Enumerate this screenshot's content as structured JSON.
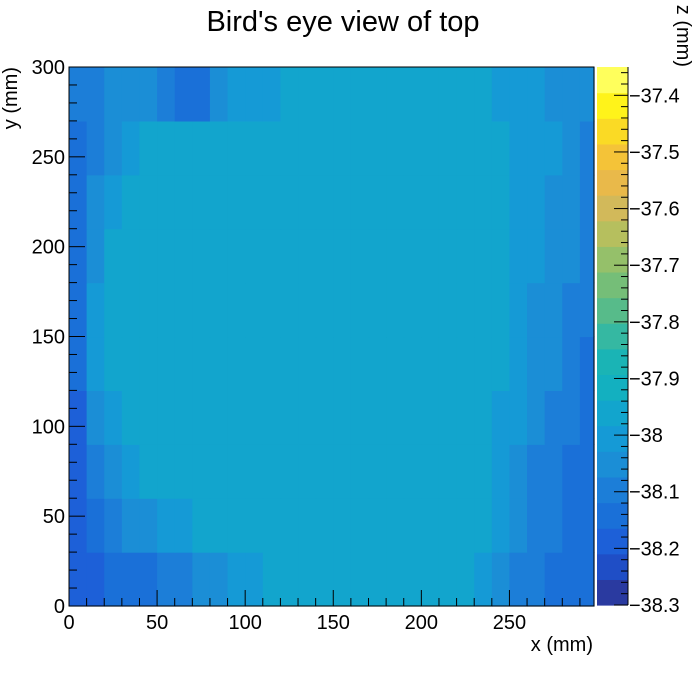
{
  "chart_data": {
    "type": "heatmap",
    "title": "Bird's eye view of top",
    "xlabel": "x (mm)",
    "ylabel": "y (mm)",
    "zlabel": "z (mm)",
    "xlim": [
      0,
      298
    ],
    "ylim": [
      0,
      300
    ],
    "zlim": [
      -38.3,
      -37.35
    ],
    "x_ticks": [
      0,
      50,
      100,
      150,
      200,
      250
    ],
    "y_ticks": [
      0,
      50,
      100,
      150,
      200,
      250,
      300
    ],
    "z_ticks": [
      -38.3,
      -38.2,
      -38.1,
      -38,
      -37.9,
      -37.8,
      -37.7,
      -37.6,
      -37.5,
      -37.4
    ],
    "x_tick_labels": [
      "0",
      "50",
      "100",
      "150",
      "200",
      "250"
    ],
    "y_tick_labels": [
      "0",
      "50",
      "100",
      "150",
      "200",
      "250",
      "300"
    ],
    "z_tick_labels": [
      "−38.3",
      "−38.2",
      "−38.1",
      "−38",
      "−37.9",
      "−37.8",
      "−37.7",
      "−37.6",
      "−37.5",
      "−37.4"
    ],
    "palette": [
      "#2a3aa0",
      "#1f4ec6",
      "#1d60d8",
      "#1a70d8",
      "#1c7ed8",
      "#1b8ed6",
      "#159ad6",
      "#12a5cd",
      "#13b0c0",
      "#1ab4b5",
      "#35b8a2",
      "#57bb8a",
      "#75be78",
      "#95c06a",
      "#b6bf5e",
      "#d2b95a",
      "#e9b94a",
      "#f4c338",
      "#fada25",
      "#fff31a",
      "#ffff5c"
    ],
    "z_grid": {
      "x_step": 10,
      "y_step": 30,
      "x": [
        5,
        15,
        25,
        35,
        45,
        55,
        65,
        75,
        85,
        95,
        105,
        115,
        125,
        135,
        145,
        155,
        165,
        175,
        185,
        195,
        205,
        215,
        225,
        235,
        245,
        255,
        265,
        275,
        285,
        295
      ],
      "y": [
        15,
        45,
        75,
        105,
        135,
        165,
        195,
        225,
        255,
        285
      ],
      "values": [
        [
          -38.2,
          -38.18,
          -38.16,
          -38.14,
          -38.12,
          -38.1,
          -38.08,
          -38.06,
          -38.04,
          -38.02,
          -38.0,
          -37.98,
          -37.95,
          -37.95,
          -37.95,
          -37.95,
          -37.95,
          -37.95,
          -37.95,
          -37.95,
          -37.95,
          -37.95,
          -37.96,
          -38.0,
          -38.05,
          -38.08,
          -38.1,
          -38.12,
          -38.14,
          -38.16
        ],
        [
          -38.18,
          -38.12,
          -38.08,
          -38.06,
          -38.04,
          -38.02,
          -38.0,
          -37.98,
          -37.96,
          -37.95,
          -37.95,
          -37.95,
          -37.95,
          -37.95,
          -37.95,
          -37.95,
          -37.95,
          -37.95,
          -37.95,
          -37.95,
          -37.95,
          -37.95,
          -37.95,
          -37.97,
          -38.02,
          -38.06,
          -38.09,
          -38.11,
          -38.13,
          -38.15
        ],
        [
          -38.18,
          -38.1,
          -38.04,
          -38.0,
          -37.98,
          -37.97,
          -37.96,
          -37.95,
          -37.95,
          -37.95,
          -37.95,
          -37.95,
          -37.95,
          -37.95,
          -37.95,
          -37.95,
          -37.95,
          -37.95,
          -37.95,
          -37.95,
          -37.95,
          -37.95,
          -37.95,
          -37.96,
          -38.0,
          -38.04,
          -38.08,
          -38.1,
          -38.12,
          -38.14
        ],
        [
          -38.17,
          -38.06,
          -37.99,
          -37.97,
          -37.96,
          -37.95,
          -37.95,
          -37.95,
          -37.95,
          -37.95,
          -37.95,
          -37.95,
          -37.95,
          -37.95,
          -37.95,
          -37.95,
          -37.95,
          -37.95,
          -37.95,
          -37.95,
          -37.95,
          -37.95,
          -37.95,
          -37.95,
          -37.99,
          -38.02,
          -38.05,
          -38.08,
          -38.1,
          -38.13
        ],
        [
          -38.16,
          -38.02,
          -37.96,
          -37.95,
          -37.95,
          -37.95,
          -37.95,
          -37.95,
          -37.95,
          -37.95,
          -37.95,
          -37.95,
          -37.95,
          -37.95,
          -37.95,
          -37.95,
          -37.95,
          -37.95,
          -37.95,
          -37.95,
          -37.95,
          -37.95,
          -37.95,
          -37.95,
          -37.98,
          -38.01,
          -38.04,
          -38.06,
          -38.09,
          -38.12
        ],
        [
          -38.15,
          -38.02,
          -37.96,
          -37.95,
          -37.95,
          -37.95,
          -37.95,
          -37.95,
          -37.95,
          -37.95,
          -37.95,
          -37.95,
          -37.95,
          -37.95,
          -37.95,
          -37.95,
          -37.95,
          -37.95,
          -37.95,
          -37.95,
          -37.95,
          -37.95,
          -37.95,
          -37.95,
          -37.98,
          -38.0,
          -38.03,
          -38.05,
          -38.08,
          -38.11
        ],
        [
          -38.15,
          -38.04,
          -37.97,
          -37.95,
          -37.95,
          -37.95,
          -37.95,
          -37.95,
          -37.95,
          -37.95,
          -37.95,
          -37.95,
          -37.95,
          -37.95,
          -37.95,
          -37.95,
          -37.95,
          -37.95,
          -37.95,
          -37.95,
          -37.95,
          -37.95,
          -37.95,
          -37.96,
          -37.98,
          -38.0,
          -38.02,
          -38.04,
          -38.06,
          -38.1
        ],
        [
          -38.14,
          -38.06,
          -38.0,
          -37.97,
          -37.96,
          -37.95,
          -37.95,
          -37.95,
          -37.95,
          -37.95,
          -37.95,
          -37.95,
          -37.95,
          -37.95,
          -37.95,
          -37.95,
          -37.95,
          -37.95,
          -37.95,
          -37.95,
          -37.95,
          -37.95,
          -37.96,
          -37.97,
          -37.98,
          -37.99,
          -38.01,
          -38.03,
          -38.05,
          -38.09
        ],
        [
          -38.12,
          -38.08,
          -38.04,
          -38.0,
          -37.98,
          -37.97,
          -37.96,
          -37.95,
          -37.95,
          -37.95,
          -37.95,
          -37.95,
          -37.95,
          -37.95,
          -37.95,
          -37.95,
          -37.95,
          -37.95,
          -37.95,
          -37.95,
          -37.96,
          -37.96,
          -37.97,
          -37.97,
          -37.98,
          -37.99,
          -38.0,
          -38.02,
          -38.04,
          -38.08
        ],
        [
          -38.1,
          -38.08,
          -38.07,
          -38.06,
          -38.06,
          -38.1,
          -38.16,
          -38.12,
          -38.06,
          -38.02,
          -38.0,
          -37.99,
          -37.98,
          -37.97,
          -37.97,
          -37.97,
          -37.97,
          -37.97,
          -37.97,
          -37.97,
          -37.97,
          -37.98,
          -37.98,
          -37.98,
          -37.99,
          -38.0,
          -38.01,
          -38.03,
          -38.05,
          -38.07
        ]
      ]
    }
  }
}
